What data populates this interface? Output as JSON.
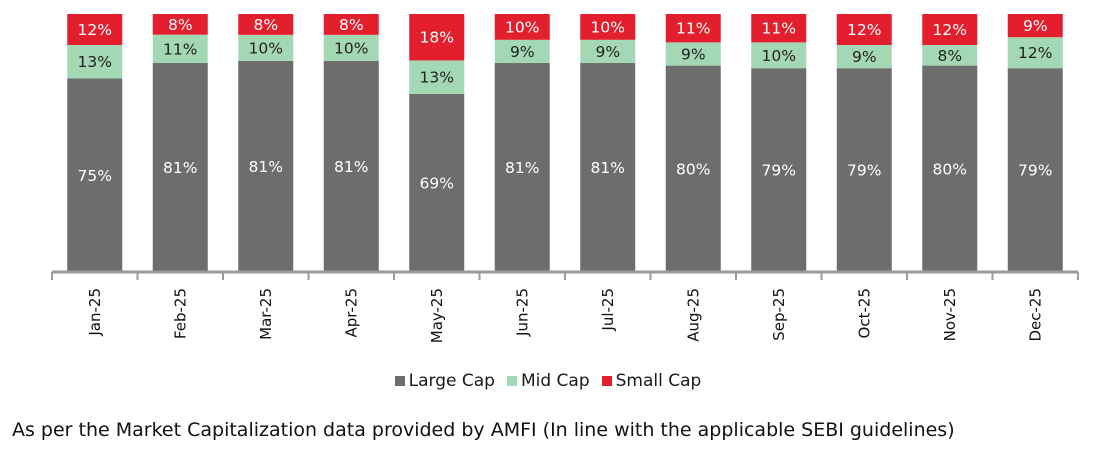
{
  "chart_data": {
    "type": "bar",
    "stacked": true,
    "categories": [
      "Jan-25",
      "Feb-25",
      "Mar-25",
      "Apr-25",
      "May-25",
      "Jun-25",
      "Jul-25",
      "Aug-25",
      "Sep-25",
      "Oct-25",
      "Nov-25",
      "Dec-25"
    ],
    "series": [
      {
        "name": "Large Cap",
        "color": "#6d6d6d",
        "label_color": "#ffffff",
        "values": [
          75,
          81,
          81,
          81,
          69,
          81,
          81,
          80,
          79,
          79,
          80,
          79
        ]
      },
      {
        "name": "Mid Cap",
        "color": "#a4d8b4",
        "label_color": "#222222",
        "values": [
          13,
          11,
          10,
          10,
          13,
          9,
          9,
          9,
          10,
          9,
          8,
          12
        ]
      },
      {
        "name": "Small Cap",
        "color": "#e31e2d",
        "label_color": "#ffffff",
        "values": [
          12,
          8,
          8,
          8,
          18,
          10,
          10,
          11,
          11,
          12,
          12,
          9
        ]
      }
    ],
    "value_suffix": "%",
    "ylim": [
      0,
      100
    ],
    "legend_position": "bottom",
    "gridlines": false
  },
  "footnote": "As per the Market Capitalization data provided by AMFI (In line with the applicable SEBI guidelines)"
}
